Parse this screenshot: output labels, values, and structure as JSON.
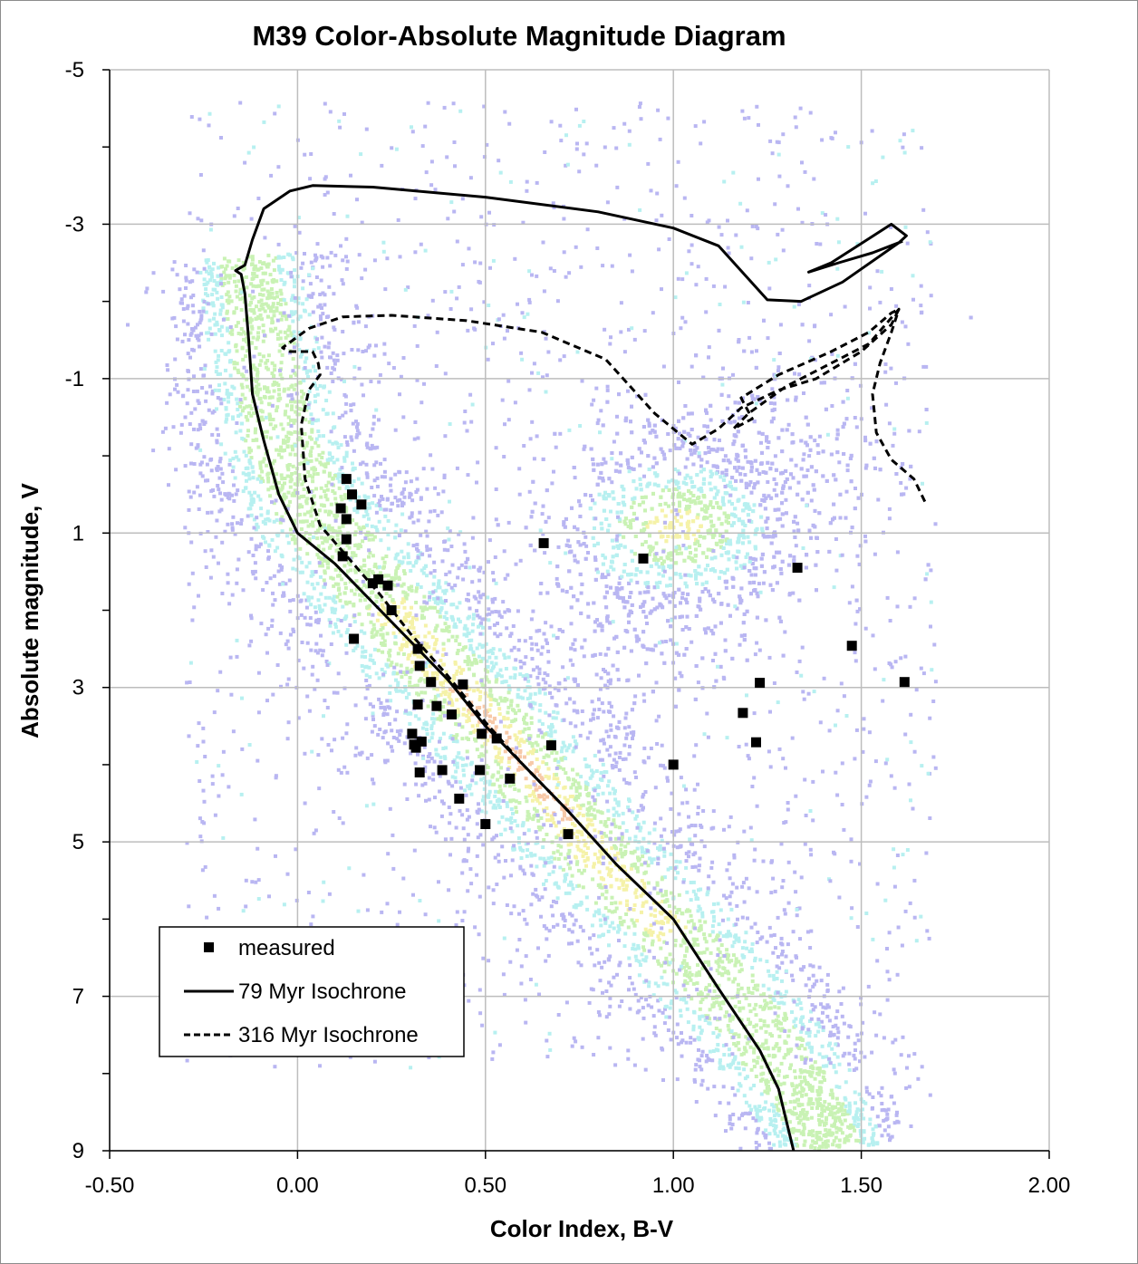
{
  "chart_data": {
    "type": "scatter",
    "title": "M39 Color-Absolute Magnitude Diagram",
    "xlabel": "Color Index, B-V",
    "ylabel": "Absolute magnitude, V",
    "xlim": [
      -0.5,
      2.0
    ],
    "ylim": [
      9,
      -5
    ],
    "y_inverted": true,
    "grid": true,
    "x_ticks": [
      "-0.50",
      "0.00",
      "0.50",
      "1.00",
      "1.50",
      "2.00"
    ],
    "x_tick_values": [
      -0.5,
      0.0,
      0.5,
      1.0,
      1.5,
      2.0
    ],
    "y_ticks": [
      "-5",
      "-3",
      "-1",
      "1",
      "3",
      "5",
      "7",
      "9"
    ],
    "y_tick_values": [
      -5,
      -3,
      -1,
      1,
      3,
      5,
      7,
      9
    ],
    "legend_position": "bottom-left",
    "background": "density map of field stars (colored by density, blue to yellow/red)",
    "series": [
      {
        "name": "measured",
        "kind": "points",
        "marker": "square",
        "color": "#000000",
        "points": [
          [
            0.13,
            0.3
          ],
          [
            0.145,
            0.5
          ],
          [
            0.17,
            0.63
          ],
          [
            0.115,
            0.68
          ],
          [
            0.13,
            0.82
          ],
          [
            0.13,
            1.08
          ],
          [
            0.12,
            1.3
          ],
          [
            0.2,
            1.65
          ],
          [
            0.215,
            1.6
          ],
          [
            0.24,
            1.68
          ],
          [
            0.15,
            2.37
          ],
          [
            0.25,
            2.0
          ],
          [
            0.32,
            2.5
          ],
          [
            0.325,
            2.72
          ],
          [
            0.355,
            2.93
          ],
          [
            0.44,
            2.96
          ],
          [
            0.32,
            3.22
          ],
          [
            0.37,
            3.24
          ],
          [
            0.41,
            3.35
          ],
          [
            0.305,
            3.6
          ],
          [
            0.31,
            3.74
          ],
          [
            0.315,
            3.78
          ],
          [
            0.33,
            3.7
          ],
          [
            0.49,
            3.6
          ],
          [
            0.53,
            3.66
          ],
          [
            0.675,
            3.75
          ],
          [
            0.485,
            4.07
          ],
          [
            0.385,
            4.07
          ],
          [
            0.325,
            4.1
          ],
          [
            0.565,
            4.18
          ],
          [
            0.43,
            4.44
          ],
          [
            0.5,
            4.77
          ],
          [
            0.72,
            4.9
          ],
          [
            0.655,
            1.13
          ],
          [
            0.92,
            1.33
          ],
          [
            1.33,
            1.45
          ],
          [
            1.475,
            2.46
          ],
          [
            1.23,
            2.94
          ],
          [
            1.615,
            2.93
          ],
          [
            1.185,
            3.33
          ],
          [
            1.22,
            3.71
          ],
          [
            1.0,
            4.0
          ]
        ]
      },
      {
        "name": "79 Myr Isochrone",
        "kind": "line",
        "dash": "solid",
        "color": "#000000",
        "points": [
          [
            1.32,
            9.0
          ],
          [
            1.28,
            8.2
          ],
          [
            1.23,
            7.7
          ],
          [
            1.12,
            6.9
          ],
          [
            1.0,
            6.0
          ],
          [
            0.85,
            5.3
          ],
          [
            0.72,
            4.6
          ],
          [
            0.6,
            4.0
          ],
          [
            0.5,
            3.5
          ],
          [
            0.4,
            2.9
          ],
          [
            0.3,
            2.4
          ],
          [
            0.2,
            1.9
          ],
          [
            0.1,
            1.4
          ],
          [
            0.0,
            1.0
          ],
          [
            -0.05,
            0.5
          ],
          [
            -0.09,
            -0.2
          ],
          [
            -0.12,
            -0.8
          ],
          [
            -0.13,
            -1.5
          ],
          [
            -0.14,
            -2.1
          ],
          [
            -0.15,
            -2.35
          ],
          [
            -0.165,
            -2.4
          ],
          [
            -0.14,
            -2.47
          ],
          [
            -0.12,
            -2.8
          ],
          [
            -0.09,
            -3.2
          ],
          [
            -0.02,
            -3.43
          ],
          [
            0.04,
            -3.5
          ],
          [
            0.2,
            -3.48
          ],
          [
            0.5,
            -3.35
          ],
          [
            0.8,
            -3.16
          ],
          [
            1.0,
            -2.95
          ],
          [
            1.12,
            -2.72
          ],
          [
            1.25,
            -2.02
          ],
          [
            1.34,
            -2.0
          ],
          [
            1.45,
            -2.25
          ],
          [
            1.6,
            -2.76
          ],
          [
            1.62,
            -2.85
          ],
          [
            1.58,
            -3.0
          ],
          [
            1.5,
            -2.75
          ],
          [
            1.42,
            -2.5
          ],
          [
            1.38,
            -2.42
          ],
          [
            1.36,
            -2.38
          ],
          [
            1.44,
            -2.5
          ],
          [
            1.53,
            -2.63
          ],
          [
            1.61,
            -2.78
          ]
        ]
      },
      {
        "name": "316 Myr Isochrone",
        "kind": "line",
        "dash": "dashed",
        "color": "#000000",
        "points": [
          [
            0.72,
            4.6
          ],
          [
            0.6,
            4.0
          ],
          [
            0.5,
            3.45
          ],
          [
            0.4,
            2.85
          ],
          [
            0.3,
            2.3
          ],
          [
            0.22,
            1.8
          ],
          [
            0.14,
            1.35
          ],
          [
            0.06,
            0.9
          ],
          [
            0.02,
            0.3
          ],
          [
            0.01,
            -0.4
          ],
          [
            0.03,
            -0.85
          ],
          [
            0.06,
            -1.05
          ],
          [
            0.055,
            -1.2
          ],
          [
            0.04,
            -1.35
          ],
          [
            -0.02,
            -1.35
          ],
          [
            -0.04,
            -1.4
          ],
          [
            0.03,
            -1.65
          ],
          [
            0.12,
            -1.8
          ],
          [
            0.25,
            -1.82
          ],
          [
            0.45,
            -1.75
          ],
          [
            0.65,
            -1.6
          ],
          [
            0.82,
            -1.25
          ],
          [
            0.95,
            -0.55
          ],
          [
            1.05,
            -0.15
          ],
          [
            1.12,
            -0.35
          ],
          [
            1.18,
            -0.62
          ],
          [
            1.28,
            -0.85
          ],
          [
            1.38,
            -1.0
          ],
          [
            1.5,
            -1.35
          ],
          [
            1.58,
            -1.7
          ],
          [
            1.6,
            -1.9
          ],
          [
            1.58,
            -1.85
          ],
          [
            1.52,
            -1.6
          ],
          [
            1.42,
            -1.35
          ],
          [
            1.28,
            -1.05
          ],
          [
            1.18,
            -0.75
          ],
          [
            1.21,
            -0.48
          ],
          [
            1.16,
            -0.35
          ],
          [
            1.2,
            -0.55
          ],
          [
            1.3,
            -0.9
          ],
          [
            1.4,
            -1.15
          ],
          [
            1.52,
            -1.45
          ],
          [
            1.6,
            -1.9
          ],
          [
            1.58,
            -1.6
          ],
          [
            1.55,
            -1.2
          ],
          [
            1.53,
            -0.8
          ],
          [
            1.54,
            -0.3
          ],
          [
            1.58,
            0.05
          ],
          [
            1.64,
            0.3
          ],
          [
            1.67,
            0.6
          ]
        ]
      }
    ]
  }
}
